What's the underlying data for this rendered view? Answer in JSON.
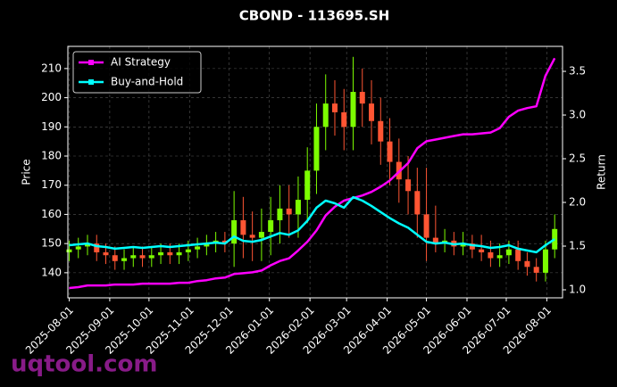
{
  "chart_data": {
    "type": "candlestick",
    "title": "CBOND - 113695.SH",
    "ylabel": "Price",
    "y2label": "Return",
    "watermark": "uqtool.com",
    "grid": true,
    "legend": "upper left",
    "up_color": "#7cfc00",
    "down_color": "#ff5533",
    "x": [
      "2025-08-01",
      "2025-08-08",
      "2025-08-15",
      "2025-08-22",
      "2025-08-29",
      "2025-09-05",
      "2025-09-12",
      "2025-09-19",
      "2025-09-26",
      "2025-10-03",
      "2025-10-10",
      "2025-10-17",
      "2025-10-24",
      "2025-10-31",
      "2025-11-07",
      "2025-11-14",
      "2025-11-21",
      "2025-11-28",
      "2025-12-05",
      "2025-12-12",
      "2025-12-19",
      "2025-12-26",
      "2026-01-02",
      "2026-01-09",
      "2026-01-16",
      "2026-01-23",
      "2026-01-30",
      "2026-02-06",
      "2026-02-13",
      "2026-02-20",
      "2026-02-27",
      "2026-03-06",
      "2026-03-13",
      "2026-03-20",
      "2026-03-27",
      "2026-04-03",
      "2026-04-10",
      "2026-04-17",
      "2026-04-24",
      "2026-05-01",
      "2026-05-08",
      "2026-05-15",
      "2026-05-22",
      "2026-05-29",
      "2026-06-05",
      "2026-06-12",
      "2026-06-19",
      "2026-06-26",
      "2026-07-03",
      "2026-07-10",
      "2026-07-17",
      "2026-07-24",
      "2026-07-31",
      "2026-08-07"
    ],
    "ohlc": {
      "open": [
        147,
        148,
        149,
        150,
        147,
        146,
        144,
        145,
        146,
        145,
        146,
        147,
        146,
        147,
        148,
        149,
        150,
        151,
        150,
        158,
        153,
        152,
        154,
        158,
        162,
        160,
        165,
        175,
        190,
        198,
        195,
        190,
        202,
        198,
        192,
        185,
        178,
        172,
        168,
        160,
        152,
        150,
        151,
        149,
        150,
        148,
        147,
        145,
        146,
        148,
        144,
        142,
        140,
        148
      ],
      "high": [
        151,
        152,
        153,
        153,
        150,
        149,
        148,
        149,
        149,
        149,
        150,
        150,
        150,
        151,
        152,
        153,
        154,
        154,
        168,
        166,
        161,
        162,
        166,
        170,
        170,
        173,
        183,
        198,
        208,
        206,
        203,
        214,
        210,
        206,
        200,
        193,
        186,
        180,
        176,
        176,
        163,
        155,
        154,
        154,
        153,
        153,
        151,
        150,
        151,
        151,
        147,
        145,
        151,
        160
      ],
      "low": [
        144,
        145,
        146,
        144,
        143,
        141,
        141,
        142,
        142,
        142,
        143,
        143,
        143,
        144,
        145,
        146,
        147,
        147,
        142,
        145,
        144,
        144,
        146,
        150,
        152,
        152,
        157,
        167,
        182,
        187,
        182,
        182,
        190,
        184,
        177,
        170,
        164,
        160,
        152,
        144,
        147,
        147,
        146,
        146,
        145,
        144,
        142,
        142,
        143,
        141,
        139,
        137,
        137,
        145
      ],
      "close": [
        148,
        149,
        150,
        147,
        146,
        144,
        145,
        146,
        145,
        146,
        147,
        146,
        147,
        148,
        149,
        150,
        151,
        150,
        158,
        153,
        152,
        154,
        158,
        162,
        160,
        165,
        175,
        190,
        198,
        195,
        190,
        202,
        198,
        192,
        185,
        178,
        172,
        168,
        160,
        152,
        150,
        151,
        149,
        150,
        148,
        147,
        145,
        146,
        148,
        144,
        142,
        140,
        148,
        155
      ]
    },
    "series": [
      {
        "name": "AI Strategy",
        "color": "#ff00ff",
        "axis": "y2",
        "values": [
          1.02,
          1.03,
          1.05,
          1.05,
          1.05,
          1.06,
          1.06,
          1.06,
          1.07,
          1.07,
          1.07,
          1.07,
          1.08,
          1.08,
          1.1,
          1.11,
          1.13,
          1.14,
          1.18,
          1.19,
          1.2,
          1.22,
          1.28,
          1.33,
          1.36,
          1.45,
          1.55,
          1.68,
          1.85,
          1.95,
          2.02,
          2.05,
          2.08,
          2.12,
          2.18,
          2.25,
          2.35,
          2.45,
          2.62,
          2.7,
          2.72,
          2.74,
          2.76,
          2.78,
          2.78,
          2.79,
          2.8,
          2.85,
          2.98,
          3.05,
          3.08,
          3.1,
          3.45,
          3.65
        ]
      },
      {
        "name": "Buy-and-Hold",
        "color": "#00ffff",
        "axis": "y2",
        "values": [
          1.51,
          1.52,
          1.53,
          1.5,
          1.49,
          1.47,
          1.48,
          1.49,
          1.48,
          1.49,
          1.5,
          1.49,
          1.5,
          1.51,
          1.52,
          1.53,
          1.54,
          1.53,
          1.61,
          1.56,
          1.55,
          1.57,
          1.61,
          1.65,
          1.63,
          1.68,
          1.79,
          1.94,
          2.02,
          1.99,
          1.94,
          2.06,
          2.02,
          1.96,
          1.89,
          1.82,
          1.76,
          1.71,
          1.63,
          1.55,
          1.53,
          1.54,
          1.52,
          1.53,
          1.51,
          1.5,
          1.48,
          1.49,
          1.51,
          1.47,
          1.45,
          1.43,
          1.51,
          1.58
        ]
      }
    ],
    "xlim": [
      "2025-07-31",
      "2026-08-13"
    ],
    "xticks": [
      "2025-08-01",
      "2025-09-01",
      "2025-10-01",
      "2025-11-01",
      "2025-12-01",
      "2026-01-01",
      "2026-02-01",
      "2026-03-01",
      "2026-04-01",
      "2026-05-01",
      "2026-06-01",
      "2026-07-01",
      "2026-08-01"
    ],
    "ylim": [
      131.4,
      217.6
    ],
    "yticks": [
      140,
      150,
      160,
      170,
      180,
      190,
      200,
      210
    ],
    "y2lim": [
      0.908,
      3.786
    ],
    "y2ticks": [
      {
        "value": 1,
        "label": "1.0"
      },
      1.5,
      {
        "value": 2,
        "label": "2.0"
      },
      2.5,
      {
        "value": 3,
        "label": "3.0"
      },
      3.5
    ]
  }
}
